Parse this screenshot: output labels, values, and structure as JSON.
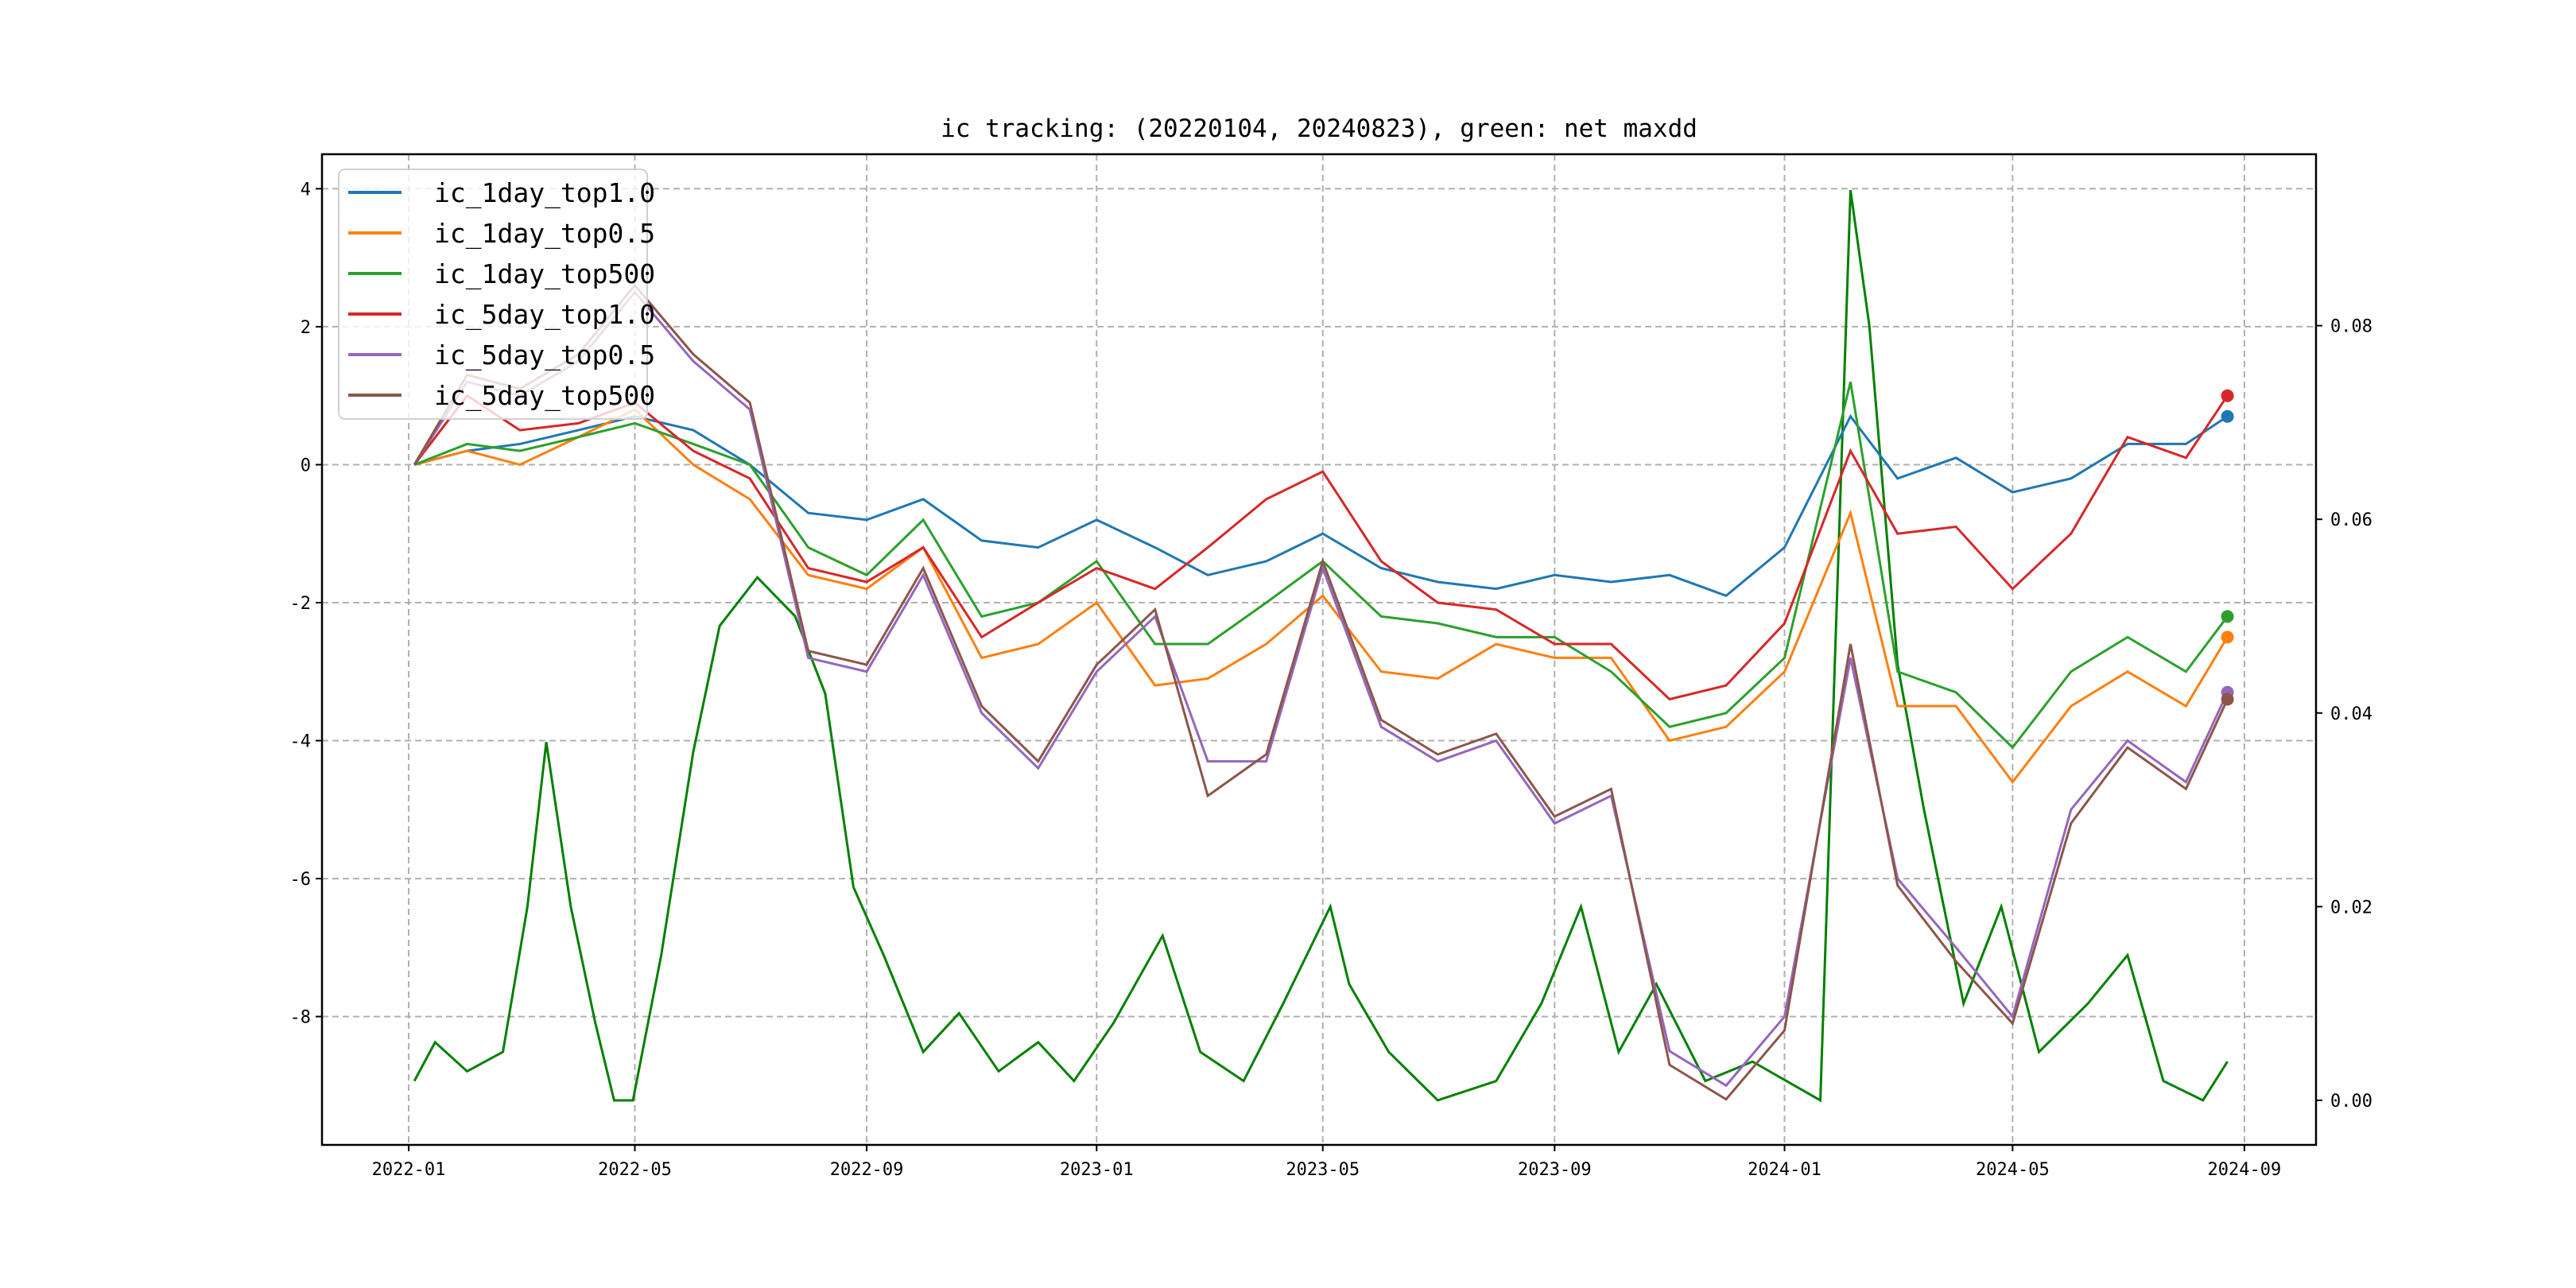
{
  "chart_data": {
    "type": "line",
    "title": "ic tracking: (20220104, 20240823), green: net maxdd",
    "xlabel": "",
    "ylabel": "",
    "xlim": [
      "2021-11-16",
      "2024-10-09"
    ],
    "ylim": [
      -9.86,
      4.5
    ],
    "ylim_right": [
      -0.0046,
      0.0977
    ],
    "grid": true,
    "legend_position": "upper-left",
    "x_ticks": [
      "2022-01",
      "2022-05",
      "2022-09",
      "2023-01",
      "2023-05",
      "2023-09",
      "2024-01",
      "2024-05",
      "2024-09"
    ],
    "y_ticks_left": [
      4,
      2,
      0,
      -2,
      -4,
      -6,
      -8
    ],
    "y_ticks_right": [
      "0.08",
      "0.06",
      "0.04",
      "0.02",
      "0.00"
    ],
    "x": [
      "2022-01-04",
      "2022-02-01",
      "2022-03-01",
      "2022-04-01",
      "2022-05-01",
      "2022-06-01",
      "2022-07-01",
      "2022-08-01",
      "2022-09-01",
      "2022-10-01",
      "2022-11-01",
      "2022-12-01",
      "2023-01-01",
      "2023-02-01",
      "2023-03-01",
      "2023-04-01",
      "2023-05-01",
      "2023-06-01",
      "2023-07-01",
      "2023-08-01",
      "2023-09-01",
      "2023-10-01",
      "2023-11-01",
      "2023-12-01",
      "2024-01-01",
      "2024-02-05",
      "2024-03-01",
      "2024-04-01",
      "2024-05-01",
      "2024-06-01",
      "2024-07-01",
      "2024-08-01",
      "2024-08-23"
    ],
    "series": [
      {
        "name": "ic_1day_top1.0",
        "color": "#1f77b4",
        "values": [
          0,
          0.2,
          0.3,
          0.5,
          0.7,
          0.5,
          0,
          -0.7,
          -0.8,
          -0.5,
          -1.1,
          -1.2,
          -0.8,
          -1.2,
          -1.6,
          -1.4,
          -1.0,
          -1.5,
          -1.7,
          -1.8,
          -1.6,
          -1.7,
          -1.6,
          -1.9,
          -1.2,
          0.7,
          -0.2,
          0.1,
          -0.4,
          -0.2,
          0.3,
          0.3,
          0.7
        ]
      },
      {
        "name": "ic_1day_top0.5",
        "color": "#ff7f0e",
        "values": [
          0,
          0.2,
          0,
          0.4,
          0.8,
          0,
          -0.5,
          -1.6,
          -1.8,
          -1.2,
          -2.8,
          -2.6,
          -2.0,
          -3.2,
          -3.1,
          -2.6,
          -1.9,
          -3.0,
          -3.1,
          -2.6,
          -2.8,
          -2.8,
          -4.0,
          -3.8,
          -3.0,
          -0.7,
          -3.5,
          -3.5,
          -4.6,
          -3.5,
          -3.0,
          -3.5,
          -2.5
        ]
      },
      {
        "name": "ic_1day_top500",
        "color": "#2ca02c",
        "values": [
          0,
          0.3,
          0.2,
          0.4,
          0.6,
          0.3,
          0,
          -1.2,
          -1.6,
          -0.8,
          -2.2,
          -2.0,
          -1.4,
          -2.6,
          -2.6,
          -2.0,
          -1.4,
          -2.2,
          -2.3,
          -2.5,
          -2.5,
          -3.0,
          -3.8,
          -3.6,
          -2.8,
          1.2,
          -3.0,
          -3.3,
          -4.1,
          -3.0,
          -2.5,
          -3.0,
          -2.2
        ]
      },
      {
        "name": "ic_5day_top1.0",
        "color": "#d62728",
        "values": [
          0,
          1.0,
          0.5,
          0.6,
          0.9,
          0.2,
          -0.2,
          -1.5,
          -1.7,
          -1.2,
          -2.5,
          -2.0,
          -1.5,
          -1.8,
          -1.2,
          -0.5,
          -0.1,
          -1.4,
          -2.0,
          -2.1,
          -2.6,
          -2.6,
          -3.4,
          -3.2,
          -2.3,
          0.2,
          -1.0,
          -0.9,
          -1.8,
          -1.0,
          0.4,
          0.1,
          1.0
        ]
      },
      {
        "name": "ic_5day_top0.5",
        "color": "#9467bd",
        "values": [
          0,
          1.2,
          1.0,
          1.5,
          2.5,
          1.5,
          0.8,
          -2.8,
          -3.0,
          -1.6,
          -3.6,
          -4.4,
          -3.0,
          -2.2,
          -4.3,
          -4.3,
          -1.5,
          -3.8,
          -4.3,
          -4.0,
          -5.2,
          -4.8,
          -8.5,
          -9.0,
          -8.0,
          -2.8,
          -6.0,
          -7.0,
          -8.0,
          -5.0,
          -4.0,
          -4.6,
          -3.3
        ]
      },
      {
        "name": "ic_5day_top500",
        "color": "#8c564b",
        "values": [
          0,
          1.3,
          1.1,
          1.6,
          2.6,
          1.6,
          0.9,
          -2.7,
          -2.9,
          -1.5,
          -3.5,
          -4.3,
          -2.9,
          -2.1,
          -4.8,
          -4.2,
          -1.4,
          -3.7,
          -4.2,
          -3.9,
          -5.1,
          -4.7,
          -8.7,
          -9.2,
          -8.2,
          -2.6,
          -6.1,
          -7.2,
          -8.1,
          -5.2,
          -4.1,
          -4.7,
          -3.4
        ]
      }
    ],
    "net_maxdd": {
      "name": "net maxdd",
      "axis": "right",
      "color": "#008000",
      "x": [
        "2022-01-04",
        "2022-01-15",
        "2022-02-01",
        "2022-02-20",
        "2022-03-05",
        "2022-03-15",
        "2022-03-28",
        "2022-04-10",
        "2022-04-20",
        "2022-04-30",
        "2022-05-15",
        "2022-06-01",
        "2022-06-15",
        "2022-07-05",
        "2022-07-25",
        "2022-08-10",
        "2022-08-25",
        "2022-09-10",
        "2022-10-01",
        "2022-10-20",
        "2022-11-10",
        "2022-12-01",
        "2022-12-20",
        "2023-01-10",
        "2023-02-05",
        "2023-02-25",
        "2023-03-20",
        "2023-04-10",
        "2023-05-05",
        "2023-05-15",
        "2023-06-05",
        "2023-07-01",
        "2023-08-01",
        "2023-08-25",
        "2023-09-15",
        "2023-10-05",
        "2023-10-25",
        "2023-11-20",
        "2023-12-15",
        "2024-01-20",
        "2024-02-05",
        "2024-02-15",
        "2024-03-01",
        "2024-03-15",
        "2024-04-05",
        "2024-04-25",
        "2024-05-15",
        "2024-06-10",
        "2024-07-01",
        "2024-07-20",
        "2024-08-10",
        "2024-08-23"
      ],
      "values": [
        0.002,
        0.006,
        0.003,
        0.005,
        0.02,
        0.037,
        0.02,
        0.008,
        0.0,
        0.0,
        0.015,
        0.036,
        0.049,
        0.054,
        0.05,
        0.042,
        0.022,
        0.015,
        0.005,
        0.009,
        0.003,
        0.006,
        0.002,
        0.008,
        0.017,
        0.005,
        0.002,
        0.01,
        0.02,
        0.012,
        0.005,
        0.0,
        0.002,
        0.01,
        0.02,
        0.005,
        0.012,
        0.002,
        0.004,
        0.0,
        0.094,
        0.08,
        0.045,
        0.03,
        0.01,
        0.02,
        0.005,
        0.01,
        0.015,
        0.002,
        0.0,
        0.004
      ]
    }
  }
}
